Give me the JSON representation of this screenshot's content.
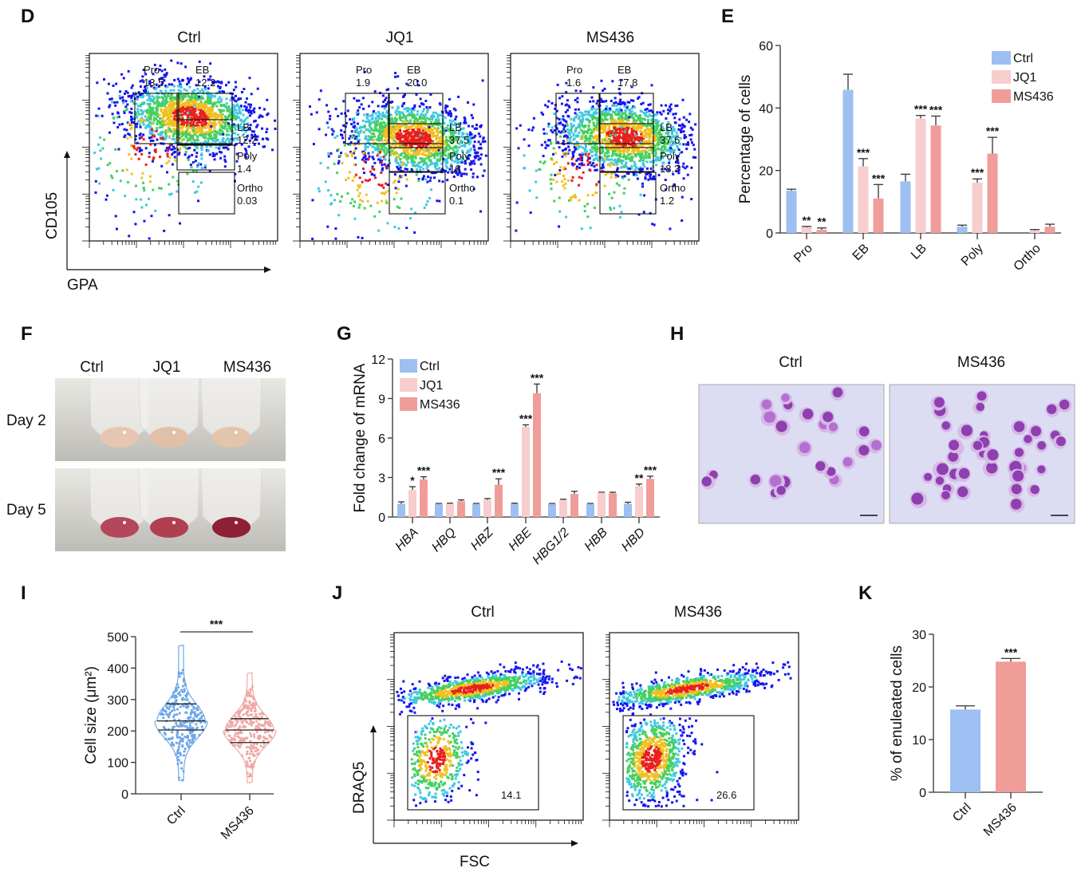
{
  "panels": {
    "D": "D",
    "E": "E",
    "F": "F",
    "G": "G",
    "H": "H",
    "I": "I",
    "J": "J",
    "K": "K"
  },
  "colors": {
    "ctrl": "#9dbff2",
    "jq1": "#f7cdcd",
    "ms436": "#f09d9a",
    "violin_ctrl": "#6fa8e8",
    "violin_ms436": "#f0a8a5"
  },
  "panel_d": {
    "xlabel": "GPA",
    "ylabel": "CD105",
    "plots": [
      {
        "title": "Ctrl",
        "gates": [
          {
            "name": "Pro",
            "value": "13.5"
          },
          {
            "name": "EB",
            "value": "12.2"
          },
          {
            "name": "LB",
            "value": "12.2"
          },
          {
            "name": "Poly",
            "value": "1.4"
          },
          {
            "name": "Ortho",
            "value": "0.03"
          }
        ]
      },
      {
        "title": "JQ1",
        "gates": [
          {
            "name": "Pro",
            "value": "1.9"
          },
          {
            "name": "EB",
            "value": "20.0"
          },
          {
            "name": "LB",
            "value": "37.5"
          },
          {
            "name": "Poly",
            "value": "16"
          },
          {
            "name": "Ortho",
            "value": "0.1"
          }
        ]
      },
      {
        "title": "MS436",
        "gates": [
          {
            "name": "Pro",
            "value": "1.6"
          },
          {
            "name": "EB",
            "value": "17.8"
          },
          {
            "name": "LB",
            "value": "37.6"
          },
          {
            "name": "Poly",
            "value": "18.3"
          },
          {
            "name": "Ortho",
            "value": "1.2"
          }
        ]
      }
    ]
  },
  "panel_f": {
    "columns": [
      "Ctrl",
      "JQ1",
      "MS436"
    ],
    "rows": [
      "Day 2",
      "Day 5"
    ]
  },
  "panel_h": {
    "titles": [
      "Ctrl",
      "MS436"
    ]
  },
  "panel_j": {
    "xlabel": "FSC",
    "ylabel": "DRAQ5",
    "plots": [
      {
        "title": "Ctrl",
        "gate_value": "14.1"
      },
      {
        "title": "MS436",
        "gate_value": "26.6"
      }
    ]
  },
  "chart_data": [
    {
      "panel": "E",
      "type": "bar",
      "ylabel": "Percentage of cells",
      "ylim": [
        0,
        60
      ],
      "yticks": [
        0,
        20,
        40,
        60
      ],
      "categories": [
        "Pro",
        "EB",
        "LB",
        "Poly",
        "Ortho"
      ],
      "legend": "top-right",
      "series": [
        {
          "name": "Ctrl",
          "values": [
            13.5,
            45.8,
            16.5,
            2.0,
            0
          ],
          "errors": [
            0.5,
            5.0,
            2.3,
            0.5,
            0
          ],
          "sig": [
            "",
            "",
            "",
            "",
            ""
          ]
        },
        {
          "name": "JQ1",
          "values": [
            1.8,
            21.3,
            36.6,
            16.1,
            0.8
          ],
          "errors": [
            0.3,
            2.5,
            1.0,
            1.2,
            0.3
          ],
          "sig": [
            "**",
            "***",
            "***",
            "***",
            ""
          ]
        },
        {
          "name": "MS436",
          "values": [
            1.0,
            11.0,
            34.4,
            25.4,
            2.0
          ],
          "errors": [
            0.6,
            4.5,
            3.0,
            5.2,
            0.8
          ],
          "sig": [
            "**",
            "***",
            "***",
            "***",
            ""
          ]
        }
      ]
    },
    {
      "panel": "G",
      "type": "bar",
      "ylabel": "Fold change of mRNA",
      "ylim": [
        0,
        12
      ],
      "yticks": [
        0,
        3,
        6,
        9,
        12
      ],
      "categories": [
        "HBA",
        "HBQ",
        "HBZ",
        "HBE",
        "HBG1/2",
        "HBB",
        "HBD"
      ],
      "legend": "top-left",
      "series": [
        {
          "name": "Ctrl",
          "values": [
            1,
            1,
            1,
            1,
            1,
            1,
            1
          ],
          "errors": [
            0.15,
            0.03,
            0.03,
            0.05,
            0.03,
            0.03,
            0.12
          ],
          "sig": [
            "",
            "",
            "",
            "",
            "",
            "",
            ""
          ]
        },
        {
          "name": "JQ1",
          "values": [
            2.05,
            1.0,
            1.3,
            6.85,
            1.3,
            1.85,
            2.35
          ],
          "errors": [
            0.25,
            0.05,
            0.1,
            0.15,
            0.05,
            0.03,
            0.15
          ],
          "sig": [
            "*",
            "",
            "",
            "***",
            "",
            "",
            "**"
          ]
        },
        {
          "name": "MS436",
          "values": [
            2.85,
            1.2,
            2.45,
            9.4,
            1.75,
            1.8,
            2.9
          ],
          "errors": [
            0.2,
            0.1,
            0.45,
            0.7,
            0.2,
            0.08,
            0.2
          ],
          "sig": [
            "***",
            "",
            "***",
            "***",
            "",
            "",
            "***"
          ]
        }
      ]
    },
    {
      "panel": "I",
      "type": "violin",
      "ylabel": "Cell size (μm²)",
      "ylim": [
        0,
        500
      ],
      "yticks": [
        0,
        100,
        200,
        300,
        400,
        500
      ],
      "categories": [
        "Ctrl",
        "MS436"
      ],
      "groups": [
        {
          "name": "Ctrl",
          "min": 42,
          "q1": 203,
          "median": 232,
          "q3": 286,
          "max": 473
        },
        {
          "name": "MS436",
          "min": 35,
          "q1": 163,
          "median": 203,
          "q3": 239,
          "max": 385
        }
      ],
      "sig": "***"
    },
    {
      "panel": "K",
      "type": "bar",
      "ylabel": "% of  enuleated cells",
      "ylim": [
        0,
        30
      ],
      "yticks": [
        0,
        10,
        20,
        30
      ],
      "categories": [
        "Ctrl",
        "MS436"
      ],
      "values": [
        15.7,
        24.8
      ],
      "errors": [
        0.7,
        0.6
      ],
      "sig": [
        "",
        "***"
      ]
    }
  ]
}
